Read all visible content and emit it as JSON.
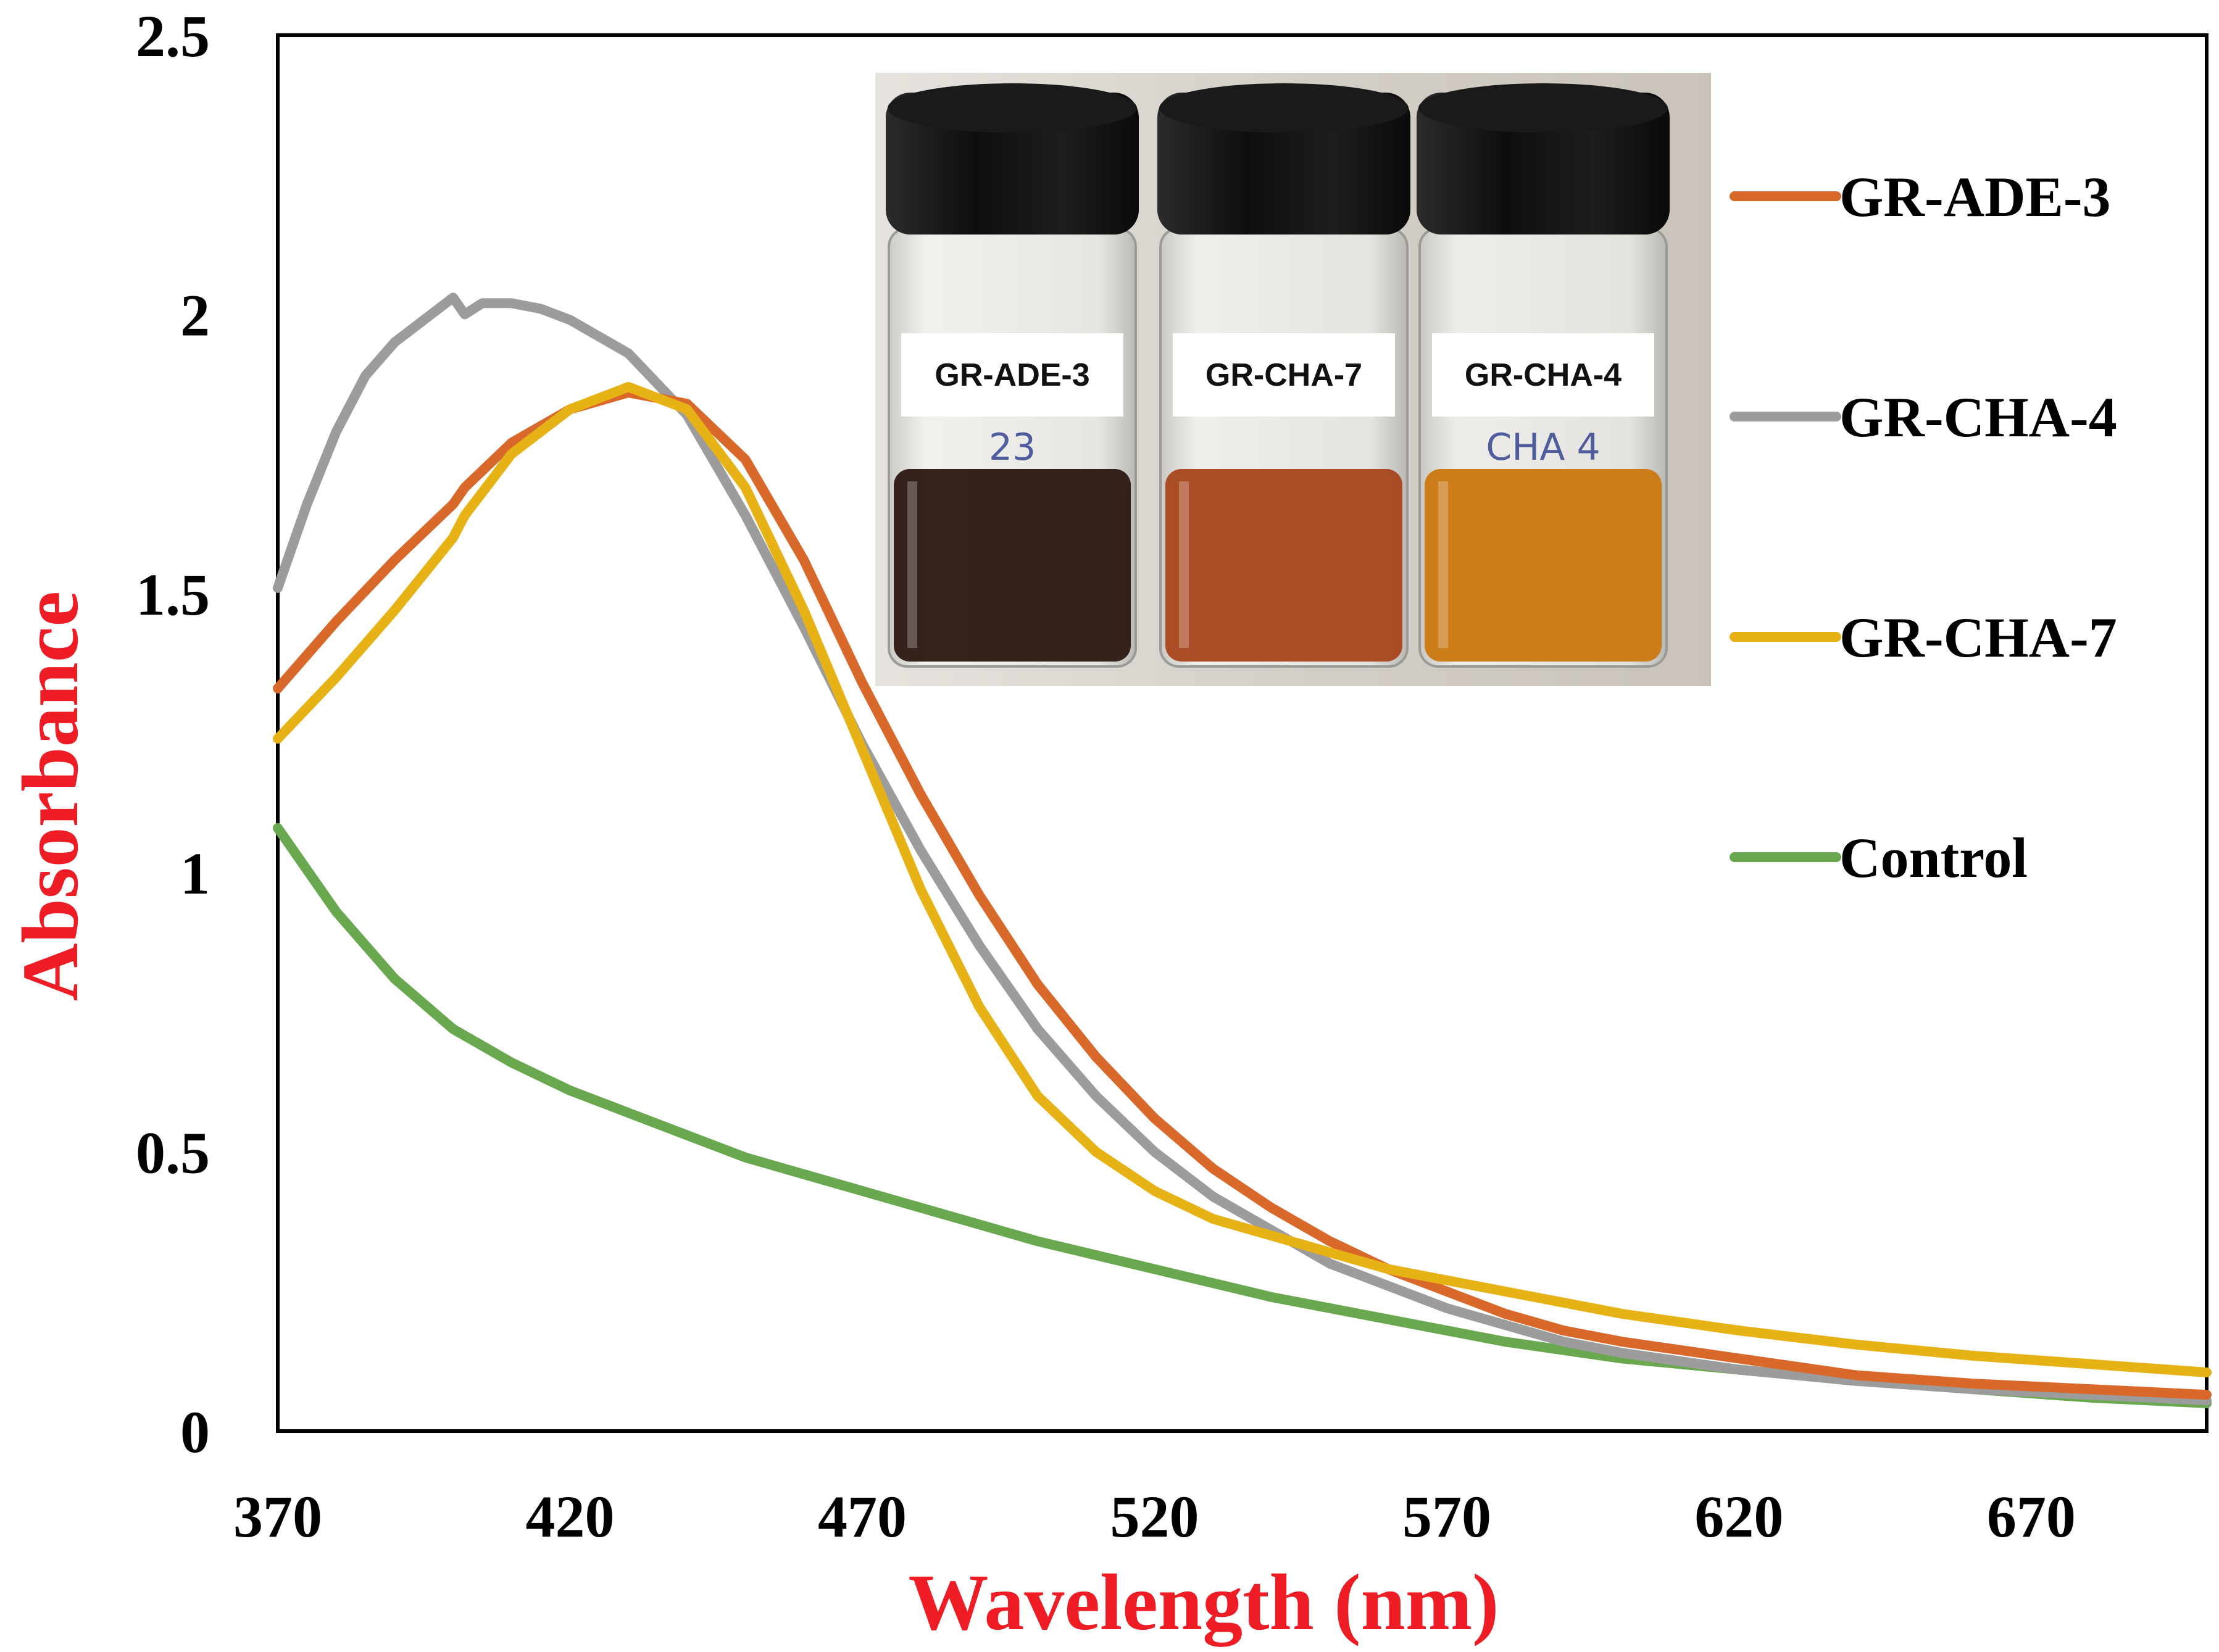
{
  "chart_data": {
    "type": "line",
    "xlabel": "Wavelength (nm)",
    "ylabel": "Absorbance",
    "xlim": [
      370,
      700
    ],
    "ylim": [
      0,
      2.5
    ],
    "x_ticks": [
      370,
      420,
      470,
      520,
      570,
      620,
      670
    ],
    "y_ticks": [
      0,
      0.5,
      1,
      1.5,
      2,
      2.5
    ],
    "y_tick_labels": [
      "0",
      "0.5",
      "1",
      "1.5",
      "2",
      "2.5"
    ],
    "grid": false,
    "legend_position": "right",
    "series": [
      {
        "name": "GR-ADE-3",
        "color": "#d9692a",
        "x": [
          370,
          380,
          390,
          400,
          402,
          410,
          420,
          430,
          440,
          450,
          460,
          470,
          480,
          490,
          500,
          510,
          520,
          530,
          540,
          550,
          560,
          570,
          580,
          590,
          600,
          620,
          640,
          660,
          680,
          700
        ],
        "y": [
          1.33,
          1.45,
          1.56,
          1.66,
          1.69,
          1.77,
          1.83,
          1.86,
          1.84,
          1.74,
          1.56,
          1.34,
          1.14,
          0.96,
          0.8,
          0.67,
          0.56,
          0.47,
          0.4,
          0.34,
          0.29,
          0.25,
          0.21,
          0.18,
          0.16,
          0.13,
          0.1,
          0.085,
          0.075,
          0.065
        ]
      },
      {
        "name": "GR-CHA-4",
        "color": "#9c9c9c",
        "x": [
          370,
          375,
          380,
          385,
          390,
          395,
          400,
          402,
          405,
          410,
          415,
          420,
          430,
          440,
          450,
          460,
          470,
          480,
          490,
          500,
          510,
          520,
          530,
          540,
          550,
          560,
          570,
          580,
          590,
          600,
          620,
          640,
          660,
          680,
          700
        ],
        "y": [
          1.51,
          1.66,
          1.79,
          1.89,
          1.95,
          1.99,
          2.03,
          2.0,
          2.02,
          2.02,
          2.01,
          1.99,
          1.93,
          1.82,
          1.64,
          1.44,
          1.23,
          1.04,
          0.87,
          0.72,
          0.6,
          0.5,
          0.42,
          0.36,
          0.3,
          0.26,
          0.22,
          0.19,
          0.16,
          0.14,
          0.11,
          0.09,
          0.075,
          0.065,
          0.055
        ]
      },
      {
        "name": "GR-CHA-7",
        "color": "#e7b216",
        "x": [
          370,
          380,
          390,
          400,
          402,
          410,
          420,
          430,
          440,
          450,
          460,
          470,
          480,
          490,
          500,
          510,
          520,
          530,
          540,
          550,
          560,
          570,
          580,
          590,
          600,
          620,
          640,
          660,
          680,
          700
        ],
        "y": [
          1.24,
          1.35,
          1.47,
          1.6,
          1.64,
          1.75,
          1.83,
          1.87,
          1.83,
          1.69,
          1.47,
          1.22,
          0.97,
          0.76,
          0.6,
          0.5,
          0.43,
          0.38,
          0.35,
          0.32,
          0.29,
          0.27,
          0.25,
          0.23,
          0.21,
          0.18,
          0.155,
          0.135,
          0.12,
          0.105
        ]
      },
      {
        "name": "Control",
        "color": "#6aa84f",
        "x": [
          370,
          380,
          390,
          400,
          410,
          420,
          430,
          440,
          450,
          460,
          470,
          480,
          490,
          500,
          520,
          540,
          560,
          580,
          600,
          620,
          640,
          660,
          680,
          700
        ],
        "y": [
          1.08,
          0.93,
          0.81,
          0.72,
          0.66,
          0.61,
          0.57,
          0.53,
          0.49,
          0.46,
          0.43,
          0.4,
          0.37,
          0.34,
          0.29,
          0.24,
          0.2,
          0.16,
          0.13,
          0.11,
          0.09,
          0.075,
          0.06,
          0.05
        ]
      }
    ]
  },
  "inset": {
    "vials": [
      {
        "label": "GR-ADE-3",
        "liquid_color": "#2a1712",
        "handwriting": "23"
      },
      {
        "label": "GR-CHA-7",
        "liquid_color": "#a8461c",
        "handwriting": ""
      },
      {
        "label": "GR-CHA-4",
        "liquid_color": "#c9780f",
        "handwriting": "CHA 4"
      }
    ]
  }
}
